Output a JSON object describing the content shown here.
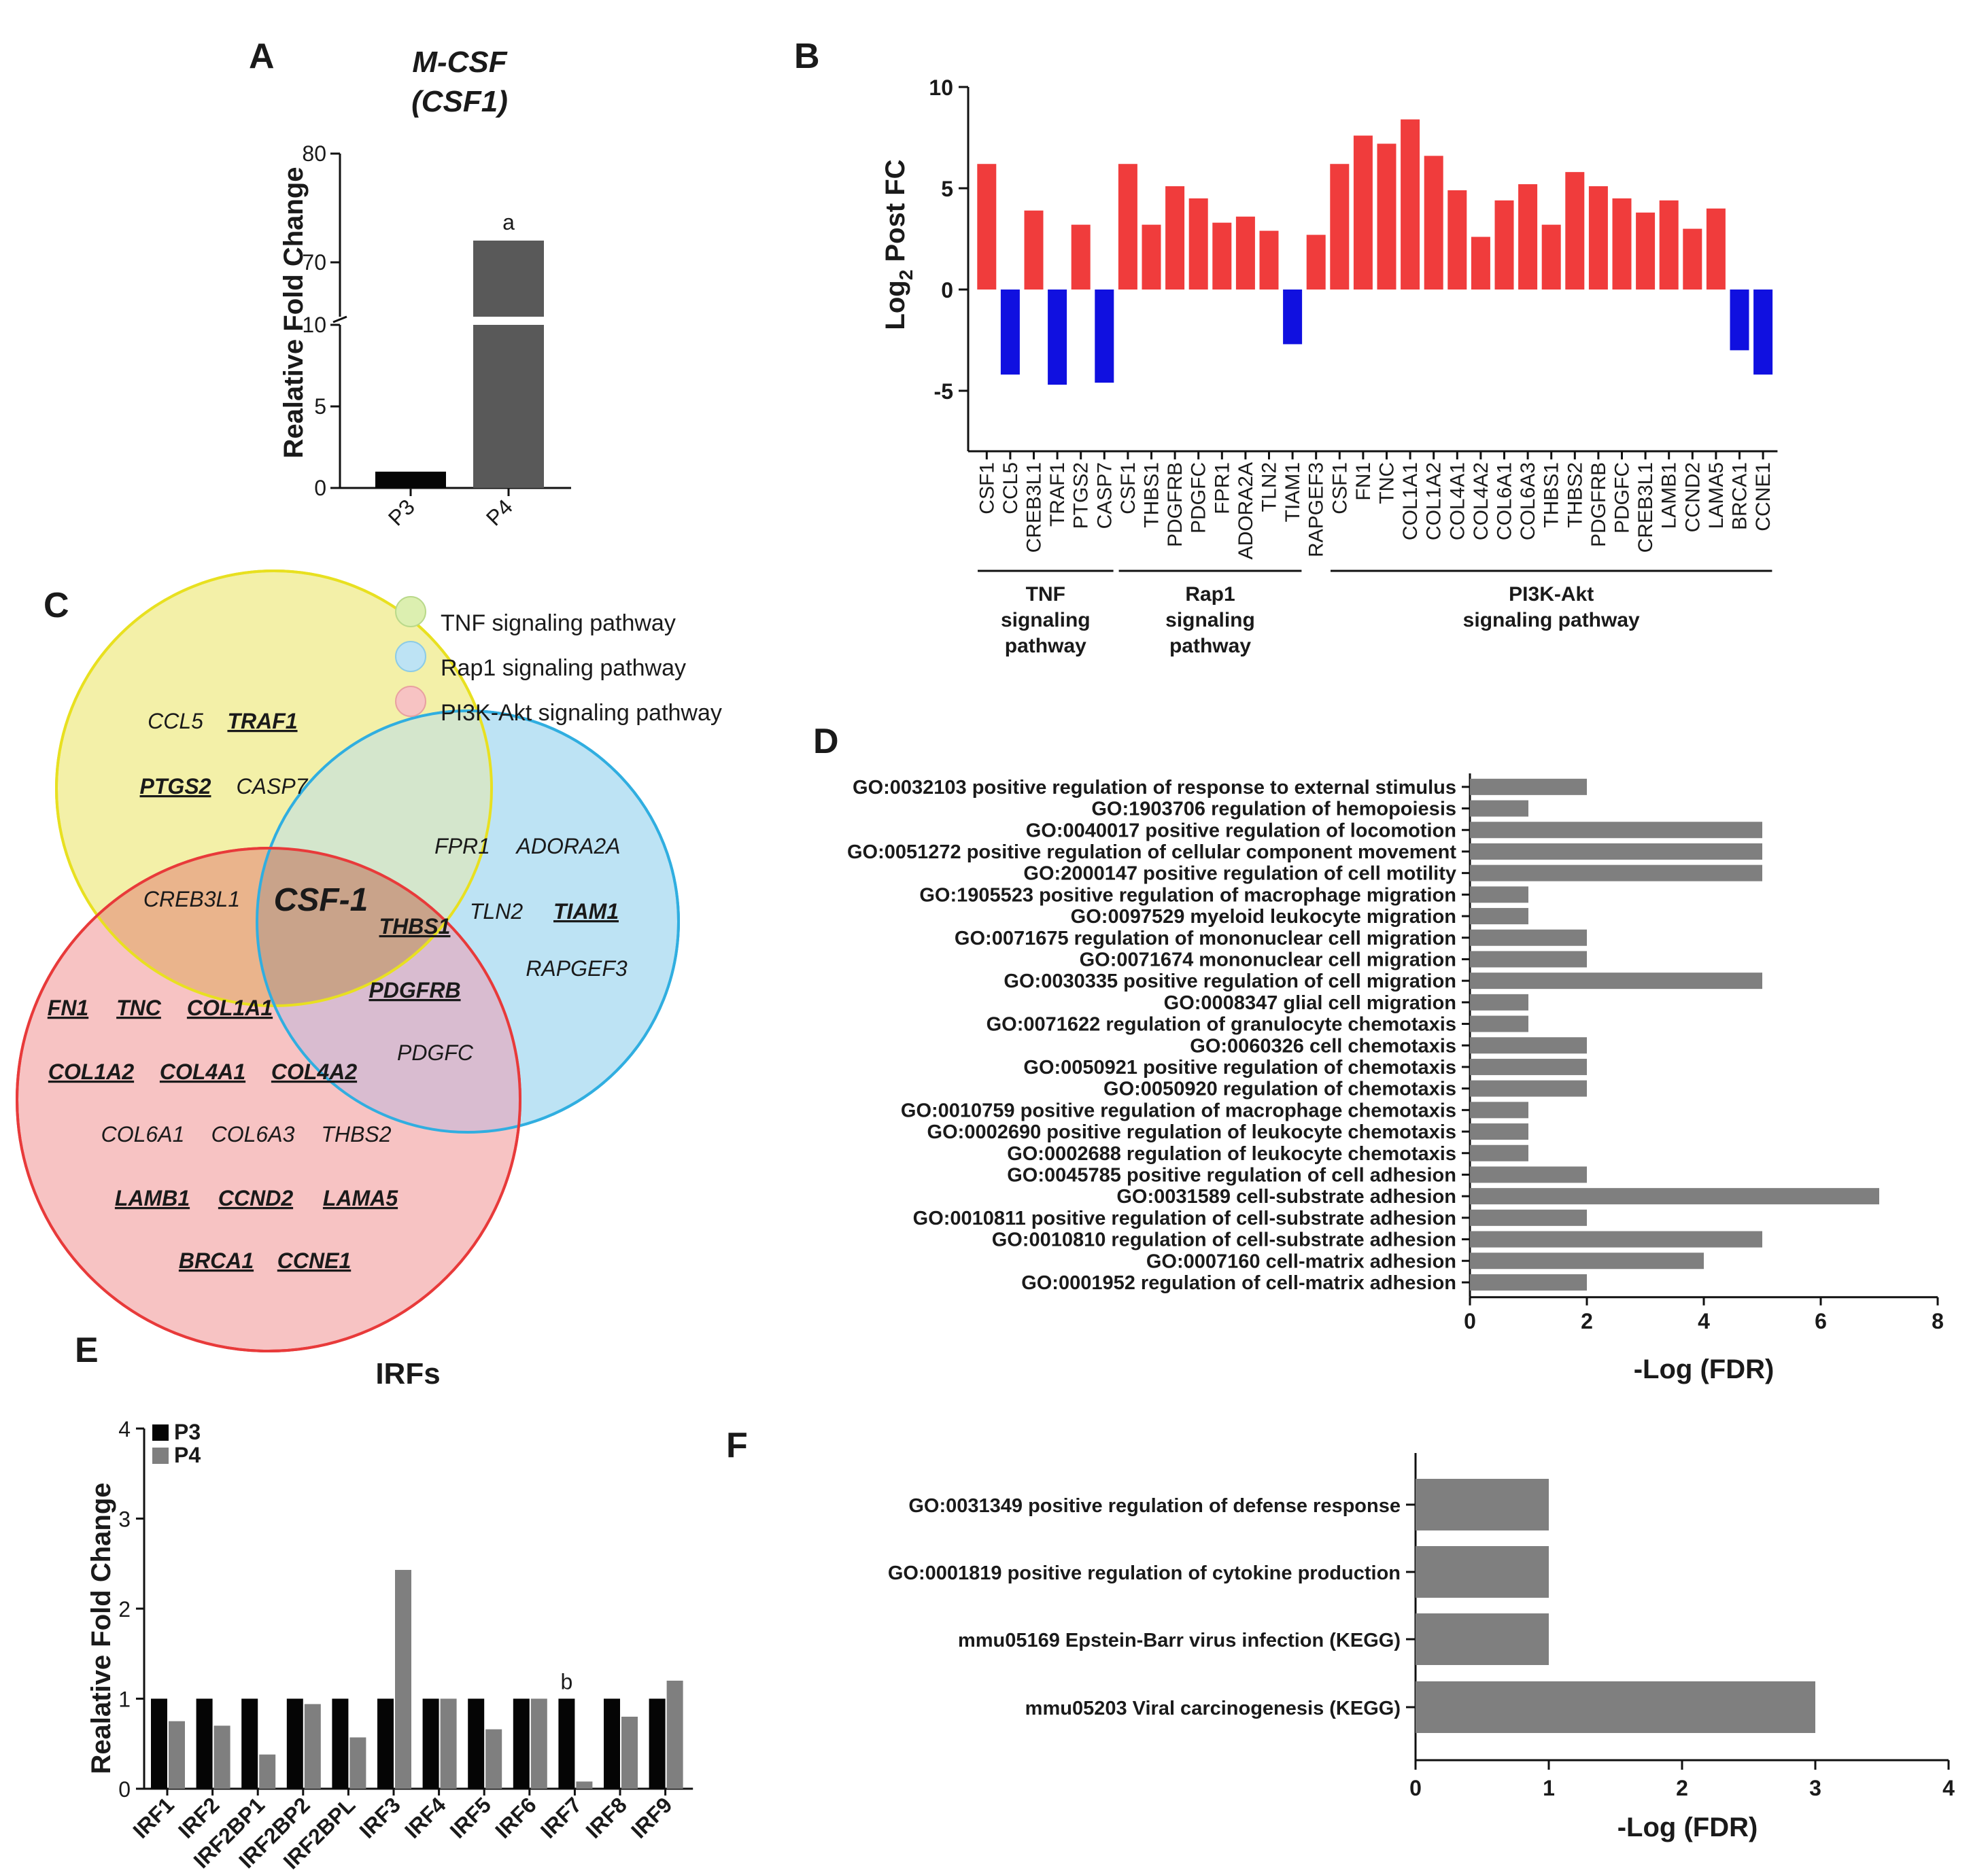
{
  "colors": {
    "up": "#f03c3c",
    "down": "#1010e0",
    "grey_bar": "#7f7f7f",
    "black_bar": "#050505",
    "dark_bar": "#595959",
    "tnf_circle": "#f3f0a8",
    "tnf_stroke": "#e8e020",
    "rap1_circle": "#bde3f4",
    "rap1_stroke": "#30aee0",
    "pi3k_circle": "#f7c3c3",
    "pi3k_stroke": "#e83a3a",
    "overlap_tnf_pi3k": "#eab48c",
    "overlap_rap1_pi3k": "#d9bcd0",
    "overlap_tnf_rap1": "#d4e6cc",
    "overlap_all": "#c9a38a"
  },
  "panels": {
    "a": "A",
    "b": "B",
    "c": "C",
    "d": "D",
    "e": "E",
    "f": "F"
  },
  "chart_data": [
    {
      "id": "A",
      "type": "bar",
      "title_line1": "M-CSF",
      "title_line2": "(CSF1)",
      "ylabel": "Realative Fold Change",
      "categories": [
        "P3",
        "P4"
      ],
      "values": [
        1,
        72
      ],
      "significance": [
        "",
        "a"
      ],
      "ylim": [
        0,
        80
      ],
      "axis_break": [
        10,
        65
      ],
      "yticks_lower": [
        0,
        5,
        10
      ],
      "yticks_upper": [
        70,
        80
      ]
    },
    {
      "id": "B",
      "type": "bar",
      "ylabel_main": "Log",
      "ylabel_sub": "2",
      "ylabel_rest": " Post FC",
      "ylim": [
        -8,
        10
      ],
      "yticks": [
        -5,
        0,
        5,
        10
      ],
      "categories": [
        "CSF1",
        "CCL5",
        "CREB3L1",
        "TRAF1",
        "PTGS2",
        "CASP7",
        "CSF1",
        "THBS1",
        "PDGFRB",
        "PDGFC",
        "FPR1",
        "ADORA2A",
        "TLN2",
        "TIAM1",
        "RAPGEF3",
        "CSF1",
        "FN1",
        "TNC",
        "COL1A1",
        "COL1A2",
        "COL4A1",
        "COL4A2",
        "COL6A1",
        "COL6A3",
        "THBS1",
        "THBS2",
        "PDGFRB",
        "PDGFC",
        "CREB3L1",
        "LAMB1",
        "CCND2",
        "LAMA5",
        "BRCA1",
        "CCNE1"
      ],
      "values": [
        6.2,
        -4.2,
        3.9,
        -4.7,
        3.2,
        -4.6,
        6.2,
        3.2,
        5.1,
        4.5,
        3.3,
        3.6,
        2.9,
        -2.7,
        2.7,
        6.2,
        7.6,
        7.2,
        8.4,
        6.6,
        4.9,
        2.6,
        4.4,
        5.2,
        3.2,
        5.8,
        5.1,
        4.5,
        3.8,
        4.4,
        3.0,
        4.0,
        -3.0,
        -4.2
      ],
      "groups": [
        {
          "label_line1": "TNF",
          "label_line2": "signaling",
          "label_line3": "pathway",
          "start": 0,
          "end": 5
        },
        {
          "label_line1": "Rap1",
          "label_line2": "signaling",
          "label_line3": "pathway",
          "start": 6,
          "end": 13
        },
        {
          "label_line1": "PI3K-Akt",
          "label_line2": "signaling pathway",
          "label_line3": "",
          "start": 15,
          "end": 33
        }
      ]
    },
    {
      "id": "D",
      "type": "bar",
      "orientation": "horizontal",
      "xlabel": "-Log (FDR)",
      "xlim": [
        0,
        8
      ],
      "xticks": [
        0,
        2,
        4,
        6,
        8
      ],
      "categories": [
        "GO:0032103 positive regulation of response to external stimulus",
        "GO:1903706 regulation of hemopoiesis",
        "GO:0040017 positive regulation of locomotion",
        "GO:0051272 positive regulation of cellular component movement",
        "GO:2000147 positive regulation of cell motility",
        "GO:1905523 positive regulation of macrophage migration",
        "GO:0097529 myeloid leukocyte migration",
        "GO:0071675 regulation of mononuclear cell migration",
        "GO:0071674 mononuclear cell migration",
        "GO:0030335 positive regulation of cell migration",
        "GO:0008347 glial cell migration",
        "GO:0071622 regulation of granulocyte chemotaxis",
        "GO:0060326 cell chemotaxis",
        "GO:0050921 positive regulation of chemotaxis",
        "GO:0050920 regulation of chemotaxis",
        "GO:0010759 positive regulation of macrophage chemotaxis",
        "GO:0002690 positive regulation of leukocyte chemotaxis",
        "GO:0002688 regulation of leukocyte chemotaxis",
        "GO:0045785 positive regulation of cell adhesion",
        "GO:0031589 cell-substrate adhesion",
        "GO:0010811 positive regulation of cell-substrate adhesion",
        "GO:0010810 regulation of cell-substrate adhesion",
        "GO:0007160 cell-matrix adhesion",
        "GO:0001952 regulation of cell-matrix adhesion"
      ],
      "values": [
        2,
        1,
        5,
        5,
        5,
        1,
        1,
        2,
        2,
        5,
        1,
        1,
        2,
        2,
        2,
        1,
        1,
        1,
        2,
        7,
        2,
        5,
        4,
        2
      ]
    },
    {
      "id": "E",
      "type": "bar",
      "title": "IRFs",
      "ylabel": "Realative Fold Change",
      "ylim": [
        0,
        4
      ],
      "yticks": [
        0,
        1,
        2,
        3,
        4
      ],
      "categories": [
        "IRF1",
        "IRF2",
        "IRF2BP1",
        "IRF2BP2",
        "IRF2BPL",
        "IRF3",
        "IRF4",
        "IRF5",
        "IRF6",
        "IRF7",
        "IRF8",
        "IRF9"
      ],
      "series": [
        {
          "name": "P3",
          "values": [
            1,
            1,
            1,
            1,
            1,
            1,
            1,
            1,
            1,
            1,
            1,
            1
          ]
        },
        {
          "name": "P4",
          "values": [
            0.75,
            0.7,
            0.38,
            0.94,
            0.57,
            2.43,
            1.0,
            0.66,
            1.0,
            0.08,
            0.8,
            1.2
          ]
        }
      ],
      "significance_label": "b",
      "significance_index": 9
    },
    {
      "id": "F",
      "type": "bar",
      "orientation": "horizontal",
      "xlabel": "-Log (FDR)",
      "xlim": [
        0,
        4
      ],
      "xticks": [
        0,
        1,
        2,
        3,
        4
      ],
      "categories": [
        "GO:0031349 positive regulation of defense response",
        "GO:0001819 positive regulation of cytokine production",
        "mmu05169 Epstein-Barr virus infection (KEGG)",
        "mmu05203 Viral carcinogenesis (KEGG)"
      ],
      "values": [
        1,
        1,
        1,
        3
      ]
    }
  ],
  "venn": {
    "legend": [
      {
        "label": "TNF signaling pathway"
      },
      {
        "label": "Rap1 signaling pathway"
      },
      {
        "label": "PI3K-Akt signaling pathway"
      }
    ],
    "center_label": "CSF-1",
    "genes": [
      {
        "name": "CCL5",
        "bold": false
      },
      {
        "name": "TRAF1",
        "bold": true
      },
      {
        "name": "PTGS2",
        "bold": true
      },
      {
        "name": "CASP7",
        "bold": false
      },
      {
        "name": "FPR1",
        "bold": false
      },
      {
        "name": "ADORA2A",
        "bold": false
      },
      {
        "name": "CREB3L1",
        "bold": false
      },
      {
        "name": "TLN2",
        "bold": false
      },
      {
        "name": "TIAM1",
        "bold": true
      },
      {
        "name": "THBS1",
        "bold": true
      },
      {
        "name": "RAPGEF3",
        "bold": false
      },
      {
        "name": "PDGFRB",
        "bold": true
      },
      {
        "name": "FN1",
        "bold": true
      },
      {
        "name": "TNC",
        "bold": true
      },
      {
        "name": "COL1A1",
        "bold": true
      },
      {
        "name": "PDGFC",
        "bold": false
      },
      {
        "name": "COL1A2",
        "bold": true
      },
      {
        "name": "COL4A1",
        "bold": true
      },
      {
        "name": "COL4A2",
        "bold": true
      },
      {
        "name": "COL6A1",
        "bold": false
      },
      {
        "name": "COL6A3",
        "bold": false
      },
      {
        "name": "THBS2",
        "bold": false
      },
      {
        "name": "LAMB1",
        "bold": true
      },
      {
        "name": "CCND2",
        "bold": true
      },
      {
        "name": "LAMA5",
        "bold": true
      },
      {
        "name": "BRCA1",
        "bold": true
      },
      {
        "name": "CCNE1",
        "bold": true
      }
    ]
  }
}
